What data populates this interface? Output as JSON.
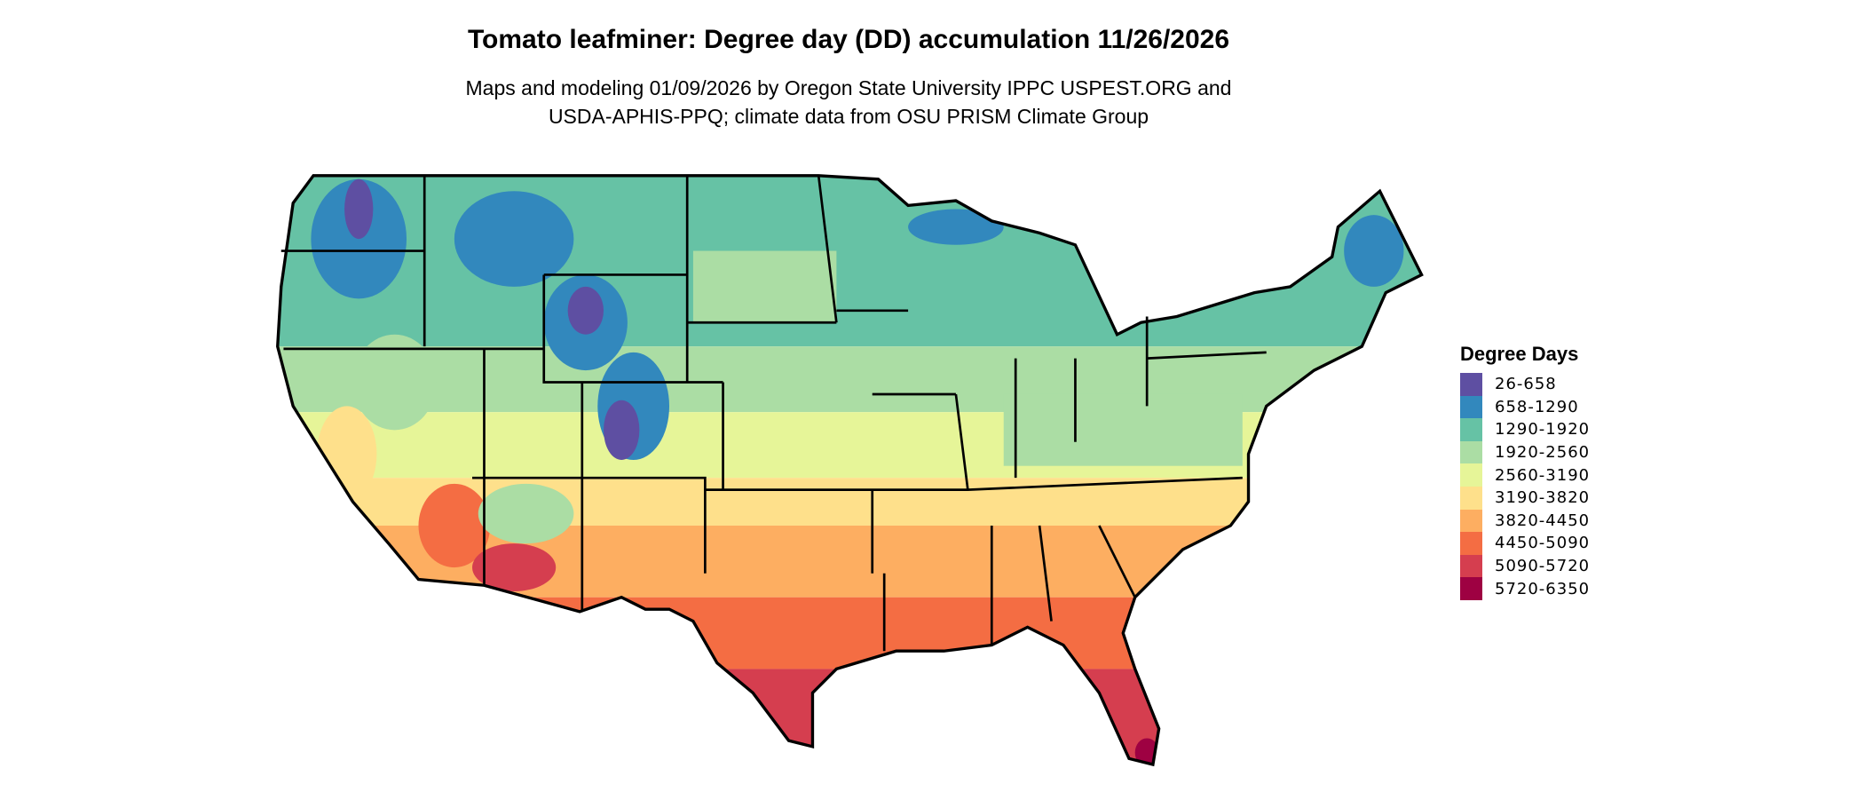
{
  "title": "Tomato leafminer: Degree day (DD) accumulation 11/26/2026",
  "subtitle_line1": "Maps and modeling 01/09/2026 by Oregon State University IPPC USPEST.ORG and",
  "subtitle_line2": "USDA-APHIS-PPQ; climate data from OSU PRISM Climate Group",
  "legend": {
    "title": "Degree Days",
    "items": [
      {
        "label": "26-658",
        "color": "#5e4fa2"
      },
      {
        "label": "658-1290",
        "color": "#3288bd"
      },
      {
        "label": "1290-1920",
        "color": "#66c2a5"
      },
      {
        "label": "1920-2560",
        "color": "#abdda4"
      },
      {
        "label": "2560-3190",
        "color": "#e6f598"
      },
      {
        "label": "3190-3820",
        "color": "#fee08b"
      },
      {
        "label": "3820-4450",
        "color": "#fdae61"
      },
      {
        "label": "4450-5090",
        "color": "#f46d43"
      },
      {
        "label": "5090-5720",
        "color": "#d53e4f"
      },
      {
        "label": "5720-6350",
        "color": "#9e0142"
      }
    ]
  }
}
